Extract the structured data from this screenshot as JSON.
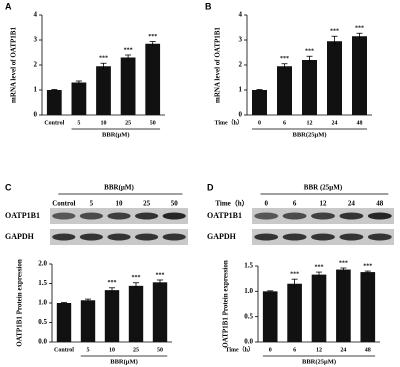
{
  "panel_labels": [
    "A",
    "B",
    "C",
    "D"
  ],
  "chart_data": [
    {
      "type": "bar",
      "y_label": "mRNA level of OATP1B1",
      "x_label": "BBR(μM)",
      "categories": [
        "Control",
        "5",
        "10",
        "25",
        "50"
      ],
      "values": [
        1,
        1.3,
        1.95,
        2.3,
        2.85
      ],
      "errors": [
        0.02,
        0.06,
        0.12,
        0.1,
        0.09
      ],
      "significance": [
        null,
        null,
        "***",
        "***",
        "***"
      ],
      "color": "#111111",
      "ylim": [
        0,
        4
      ],
      "yticks": [
        0,
        1,
        2,
        3,
        4
      ]
    },
    {
      "type": "bar",
      "y_label": "mRNA level of OATP1B1",
      "x_label": "BBR(25μM)",
      "x_prefix": "Time（h）",
      "categories": [
        "0",
        "6",
        "12",
        "24",
        "48"
      ],
      "values": [
        1,
        1.95,
        2.2,
        2.95,
        3.15
      ],
      "errors": [
        0.02,
        0.1,
        0.15,
        0.2,
        0.12
      ],
      "significance": [
        null,
        "***",
        "***",
        "***",
        "***"
      ],
      "color": "#111111",
      "ylim": [
        0,
        4
      ],
      "yticks": [
        0,
        1,
        2,
        3,
        4
      ]
    },
    {
      "type": "bar",
      "y_label": "OATP1B1 Protein expression",
      "x_label": "BBR(μM)",
      "categories": [
        "Control",
        "5",
        "10",
        "25",
        "50"
      ],
      "values": [
        1,
        1.07,
        1.33,
        1.44,
        1.53
      ],
      "errors": [
        0.01,
        0.03,
        0.06,
        0.08,
        0.06
      ],
      "significance": [
        null,
        null,
        "***",
        "***",
        "***"
      ],
      "color": "#111111",
      "ylim": [
        0,
        2
      ],
      "yticks": [
        {
          "value": 0,
          "label": "0.0"
        },
        {
          "value": 0.5,
          "label": "0.5"
        },
        {
          "value": 1,
          "label": "1.0"
        },
        {
          "value": 1.5,
          "label": "1.5"
        },
        {
          "value": 2,
          "label": "2.0"
        }
      ]
    },
    {
      "type": "bar",
      "y_label": "OATP1B1 Protein expression",
      "x_label": "BBR(25μM)",
      "x_prefix": "Time（h）",
      "categories": [
        "0",
        "6",
        "12",
        "24",
        "48"
      ],
      "values": [
        1,
        1.15,
        1.33,
        1.43,
        1.38
      ],
      "errors": [
        0.01,
        0.09,
        0.05,
        0.03,
        0.02
      ],
      "significance": [
        null,
        "***",
        "***",
        "***",
        "***"
      ],
      "color": "#111111",
      "ylim": [
        0,
        1.5
      ],
      "yticks": [
        {
          "value": 0,
          "label": "0.0"
        },
        {
          "value": 0.5,
          "label": "0.5"
        },
        {
          "value": 1,
          "label": "1.0"
        },
        {
          "value": 1.5,
          "label": "1.5"
        }
      ]
    }
  ],
  "blots": [
    {
      "header": "BBR(μM)",
      "lanes": [
        "Control",
        "5",
        "10",
        "25",
        "50"
      ],
      "rows": [
        "OATP1B1",
        "GAPDH"
      ]
    },
    {
      "header": "BBR (25μM)",
      "lane_prefix": "Time（h）",
      "lanes": [
        "0",
        "6",
        "12",
        "24",
        "48"
      ],
      "rows": [
        "OATP1B1",
        "GAPDH"
      ]
    }
  ]
}
